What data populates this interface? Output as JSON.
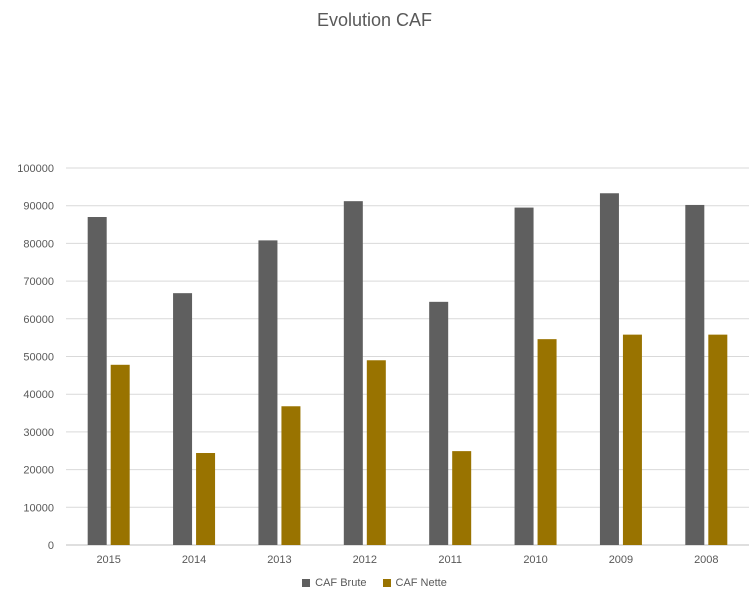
{
  "chart_data": {
    "type": "bar",
    "title": "Evolution CAF",
    "categories": [
      "2015",
      "2014",
      "2013",
      "2012",
      "2011",
      "2010",
      "2009",
      "2008"
    ],
    "series": [
      {
        "name": "CAF Brute",
        "color": "#5f5f5f",
        "values": [
          87000,
          66800,
          80800,
          91200,
          64500,
          89500,
          93300,
          90200
        ]
      },
      {
        "name": "CAF Nette",
        "color": "#997300",
        "values": [
          47800,
          24400,
          36800,
          49000,
          24900,
          54600,
          55800,
          55800
        ]
      }
    ],
    "ylim": [
      0,
      100000
    ],
    "yticks": [
      0,
      10000,
      20000,
      30000,
      40000,
      50000,
      60000,
      70000,
      80000,
      90000,
      100000
    ],
    "grid": true,
    "legend": "bottom"
  }
}
